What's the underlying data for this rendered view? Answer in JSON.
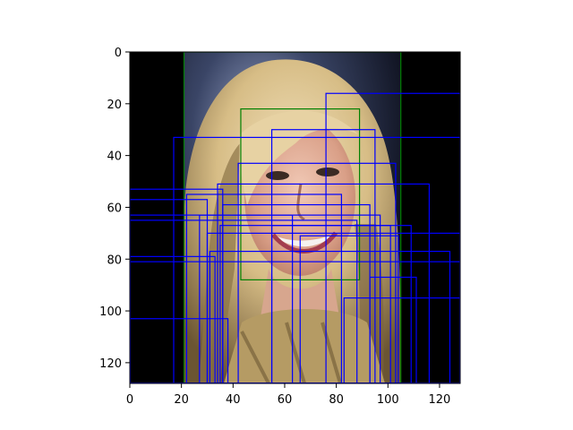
{
  "figure": {
    "x_ticks": [
      "0",
      "20",
      "40",
      "60",
      "80",
      "100",
      "120"
    ],
    "y_ticks": [
      "0",
      "20",
      "40",
      "60",
      "80",
      "100",
      "120"
    ],
    "x_range": [
      0,
      128
    ],
    "y_range": [
      0,
      128
    ],
    "y_inverted": true,
    "image": {
      "description": "cropped face photo",
      "background_color": "#000000",
      "photo_extent": [
        21,
        105,
        0,
        128
      ]
    },
    "green_boxes": [
      [
        21,
        0,
        105,
        128
      ],
      [
        43,
        22,
        89,
        88
      ]
    ],
    "blue_boxes": [
      [
        76,
        16,
        128,
        128
      ],
      [
        17,
        33,
        128,
        128
      ],
      [
        55,
        30,
        95,
        128
      ],
      [
        42,
        43,
        103,
        128
      ],
      [
        34,
        51,
        116,
        128
      ],
      [
        0,
        53,
        36,
        128
      ],
      [
        22,
        55,
        82,
        128
      ],
      [
        0,
        57,
        30,
        128
      ],
      [
        36,
        59,
        93,
        128
      ],
      [
        0,
        63,
        63,
        128
      ],
      [
        27,
        63,
        97,
        128
      ],
      [
        0,
        65,
        88,
        128
      ],
      [
        55,
        67,
        109,
        128
      ],
      [
        35,
        67,
        101,
        128
      ],
      [
        30,
        70,
        128,
        128
      ],
      [
        66,
        71,
        104,
        128
      ],
      [
        0,
        79,
        33,
        128
      ],
      [
        0,
        81,
        128,
        128
      ],
      [
        31,
        77,
        124,
        128
      ],
      [
        93,
        87,
        111,
        128
      ],
      [
        83,
        95,
        128,
        128
      ],
      [
        0,
        103,
        38,
        128
      ]
    ],
    "colors": {
      "axes": "#000000",
      "green": "#008000",
      "blue": "#0000ff"
    }
  }
}
